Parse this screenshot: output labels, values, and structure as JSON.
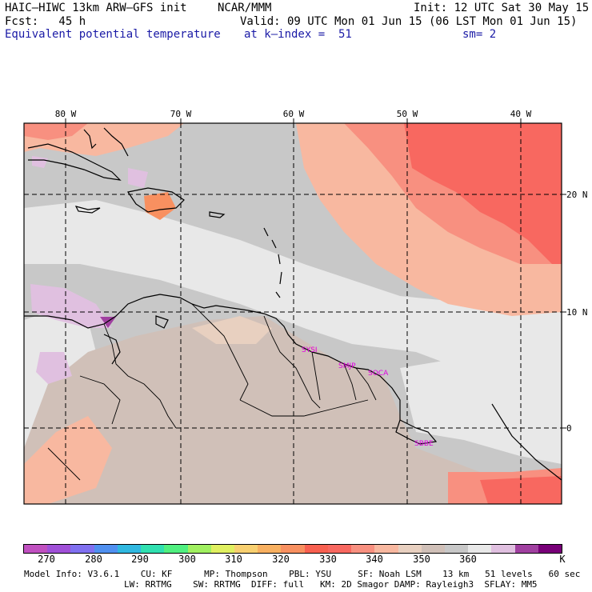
{
  "header": {
    "model": "HAIC–HIWC 13km ARW–GFS init",
    "org": "NCAR/MMM",
    "init": "Init: 12 UTC Sat 30 May 15",
    "fcst": "Fcst:   45 h",
    "valid": "Valid: 09 UTC Mon 01 Jun 15 (06 LST Mon 01 Jun 15)",
    "field": "Equivalent potential temperature",
    "level": "at k–index =  51",
    "smooth": "sm= 2"
  },
  "map": {
    "lon_labels": [
      "80 W",
      "70 W",
      "60 W",
      "50 W",
      "40 W"
    ],
    "lat_labels": [
      "20 N",
      "10 N",
      "0"
    ],
    "stations": [
      "SYSI",
      "SMJP",
      "SOCA",
      "SBBE"
    ],
    "station_color": "#e000e0"
  },
  "colorbar": {
    "colors": [
      "#c050c0",
      "#a050d8",
      "#8070f0",
      "#5090f0",
      "#30b8e0",
      "#30e0b0",
      "#50f080",
      "#a0f060",
      "#e0f060",
      "#f8d070",
      "#f8b060",
      "#f89060",
      "#f86050",
      "#f86860",
      "#f89080",
      "#f8b8a0",
      "#e8d0c0",
      "#d0c0b8",
      "#c8c8c8",
      "#e8e8e8",
      "#e0c0e0",
      "#a040a0",
      "#780078"
    ],
    "labels": [
      "270",
      "280",
      "290",
      "300",
      "310",
      "320",
      "330",
      "340",
      "350",
      "360"
    ],
    "unit": "K"
  },
  "footer": {
    "line1": "Model Info: V3.6.1    CU: KF      MP: Thompson    PBL: YSU     SF: Noah LSM    13 km   51 levels   60 sec",
    "line2": "LW: RRTMG    SW: RRTMG  DIFF: full   KM: 2D Smagor DAMP: Rayleigh3  SFLAY: MM5"
  }
}
